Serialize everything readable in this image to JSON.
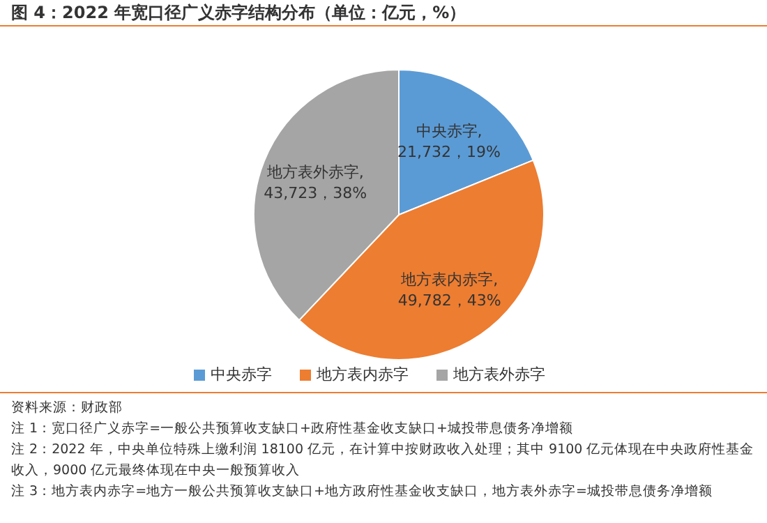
{
  "chart_data": {
    "type": "pie",
    "title": "图 4：2022 年宽口径广义赤字结构分布（单位：亿元，%）",
    "categories": [
      "中央赤字",
      "地方表内赤字",
      "地方表外赤字"
    ],
    "values": [
      21732,
      49782,
      43723
    ],
    "value_labels": [
      "中央赤字, 21,732，19%",
      "地方表内赤字, 49,782，43%",
      "地方表外赤字, 43,723，38%"
    ],
    "colors": [
      "#5b9bd5",
      "#ed7d31",
      "#a5a5a5"
    ],
    "legend": "bottom",
    "annotations": [
      "资料来源：财政部",
      "注 1：宽口径广义赤字=一般公共预算收支缺口+政府性基金收支缺口+城投带息债务净增额",
      "注 2：2022 年，中央单位特殊上缴利润 18100 亿元，在计算中按财政收入处理；其中 9100 亿元体现在中央政府性基金收入，9000 亿元最终体现在中央一般预算收入",
      "注 3：地方表内赤字=地方一般公共预算收支缺口+地方政府性基金收支缺口，地方表外赤字=城投带息债务净增额"
    ]
  }
}
